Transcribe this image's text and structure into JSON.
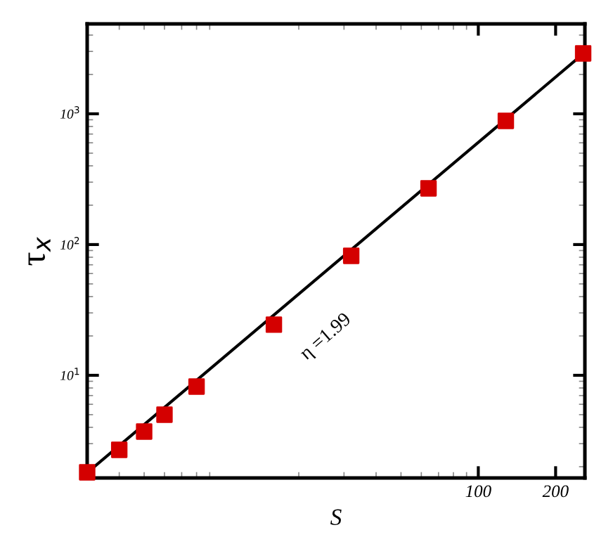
{
  "chart_data": {
    "type": "scatter",
    "xlabel": "S",
    "ylabel": "τ$_{x}$",
    "log": "xy",
    "grid": false,
    "legend": false,
    "xlim": [
      3,
      260
    ],
    "ylim": [
      1.64,
      4870
    ],
    "xticks": [
      100,
      200
    ],
    "yticks": [
      {
        "value": 10,
        "label": "10$^{1}$"
      },
      {
        "value": 100,
        "label": "10$^{2}$"
      },
      {
        "value": 1000,
        "label": "10$^{3}$"
      }
    ],
    "series": [
      {
        "type": "line",
        "color": "#000000",
        "marker": "none",
        "line_style": "solid",
        "x": [
          3,
          260
        ],
        "values": [
          1.8,
          2950
        ]
      },
      {
        "color": "#d40000",
        "marker": "square",
        "x": [
          3,
          4,
          5,
          6,
          8,
          16,
          32,
          64,
          128,
          256
        ],
        "values": [
          1.81,
          2.69,
          3.71,
          5.0,
          8.2,
          24.4,
          82,
          269,
          883,
          2897
        ]
      }
    ],
    "annotations": [
      "η =1.99"
    ]
  }
}
